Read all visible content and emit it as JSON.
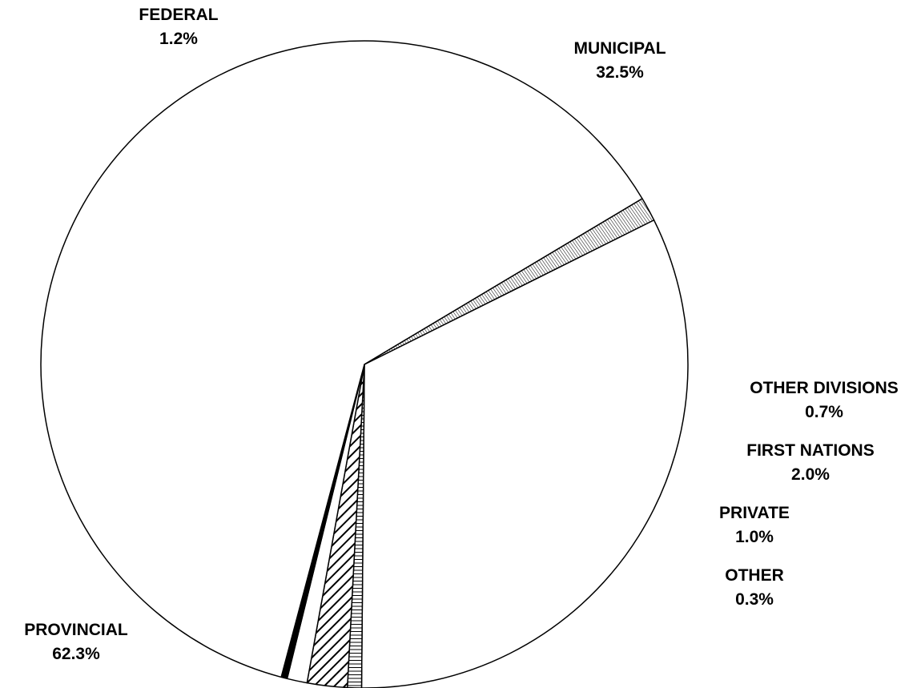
{
  "chart_data": {
    "type": "pie",
    "title": "",
    "legend": "none",
    "slices": [
      {
        "label": "MUNICIPAL",
        "value": 32.5,
        "value_label": "32.5%",
        "pattern": "solid",
        "color": "#ffffff"
      },
      {
        "label": "OTHER DIVISIONS",
        "value": 0.7,
        "value_label": "0.7%",
        "pattern": "horizontal-lines",
        "color": "#ffffff"
      },
      {
        "label": "FIRST NATIONS",
        "value": 2.0,
        "value_label": "2.0%",
        "pattern": "wide-diagonal-hatch",
        "color": "#ffffff"
      },
      {
        "label": "PRIVATE",
        "value": 1.0,
        "value_label": "1.0%",
        "pattern": "solid",
        "color": "#ffffff"
      },
      {
        "label": "OTHER",
        "value": 0.3,
        "value_label": "0.3%",
        "pattern": "solid",
        "color": "#000000"
      },
      {
        "label": "PROVINCIAL",
        "value": 62.3,
        "value_label": "62.3%",
        "pattern": "solid",
        "color": "#ffffff"
      },
      {
        "label": "FEDERAL",
        "value": 1.2,
        "value_label": "1.2%",
        "pattern": "fine-diagonal-hatch",
        "color": "#ffffff"
      }
    ]
  }
}
